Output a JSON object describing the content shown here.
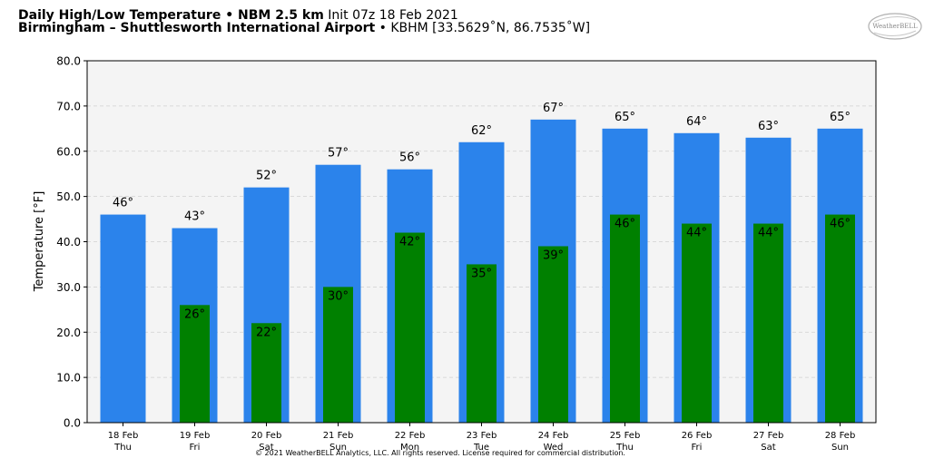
{
  "header": {
    "title_bold": "Daily High/Low Temperature • NBM 2.5 km",
    "title_init": "Init 07z 18 Feb 2021",
    "location_bold": "Birmingham – Shuttlesworth International Airport",
    "location_rest": "• KBHM [33.5629˚N, 86.7535˚W]"
  },
  "logo": {
    "text": "WeatherBELL"
  },
  "copyright": "© 2021 WeatherBELL Analytics, LLC. All rights reserved. License required for commercial distribution.",
  "chart_data": {
    "type": "bar",
    "title": "Daily High/Low Temperature • NBM 2.5 km",
    "ylabel": "Temperature [°F]",
    "ylim": [
      0,
      80
    ],
    "yticks": [
      "0.0",
      "10.0",
      "20.0",
      "30.0",
      "40.0",
      "50.0",
      "60.0",
      "70.0",
      "80.0"
    ],
    "grid": true,
    "categories": [
      "18 Feb",
      "19 Feb",
      "20 Feb",
      "21 Feb",
      "22 Feb",
      "23 Feb",
      "24 Feb",
      "25 Feb",
      "26 Feb",
      "27 Feb",
      "28 Feb"
    ],
    "days": [
      "Thu",
      "Fri",
      "Sat",
      "Sun",
      "Mon",
      "Tue",
      "Wed",
      "Thu",
      "Fri",
      "Sat",
      "Sun"
    ],
    "series": [
      {
        "color": "#2b83eb",
        "values": [
          46,
          43,
          52,
          57,
          56,
          62,
          67,
          65,
          64,
          63,
          65
        ],
        "labels": [
          "46°",
          "43°",
          "52°",
          "57°",
          "56°",
          "62°",
          "67°",
          "65°",
          "64°",
          "63°",
          "65°"
        ]
      },
      {
        "color": "#008000",
        "values": [
          null,
          26,
          22,
          30,
          42,
          35,
          39,
          46,
          44,
          44,
          46
        ],
        "labels": [
          "",
          "26°",
          "22°",
          "30°",
          "42°",
          "35°",
          "39°",
          "46°",
          "44°",
          "44°",
          "46°"
        ]
      }
    ]
  }
}
